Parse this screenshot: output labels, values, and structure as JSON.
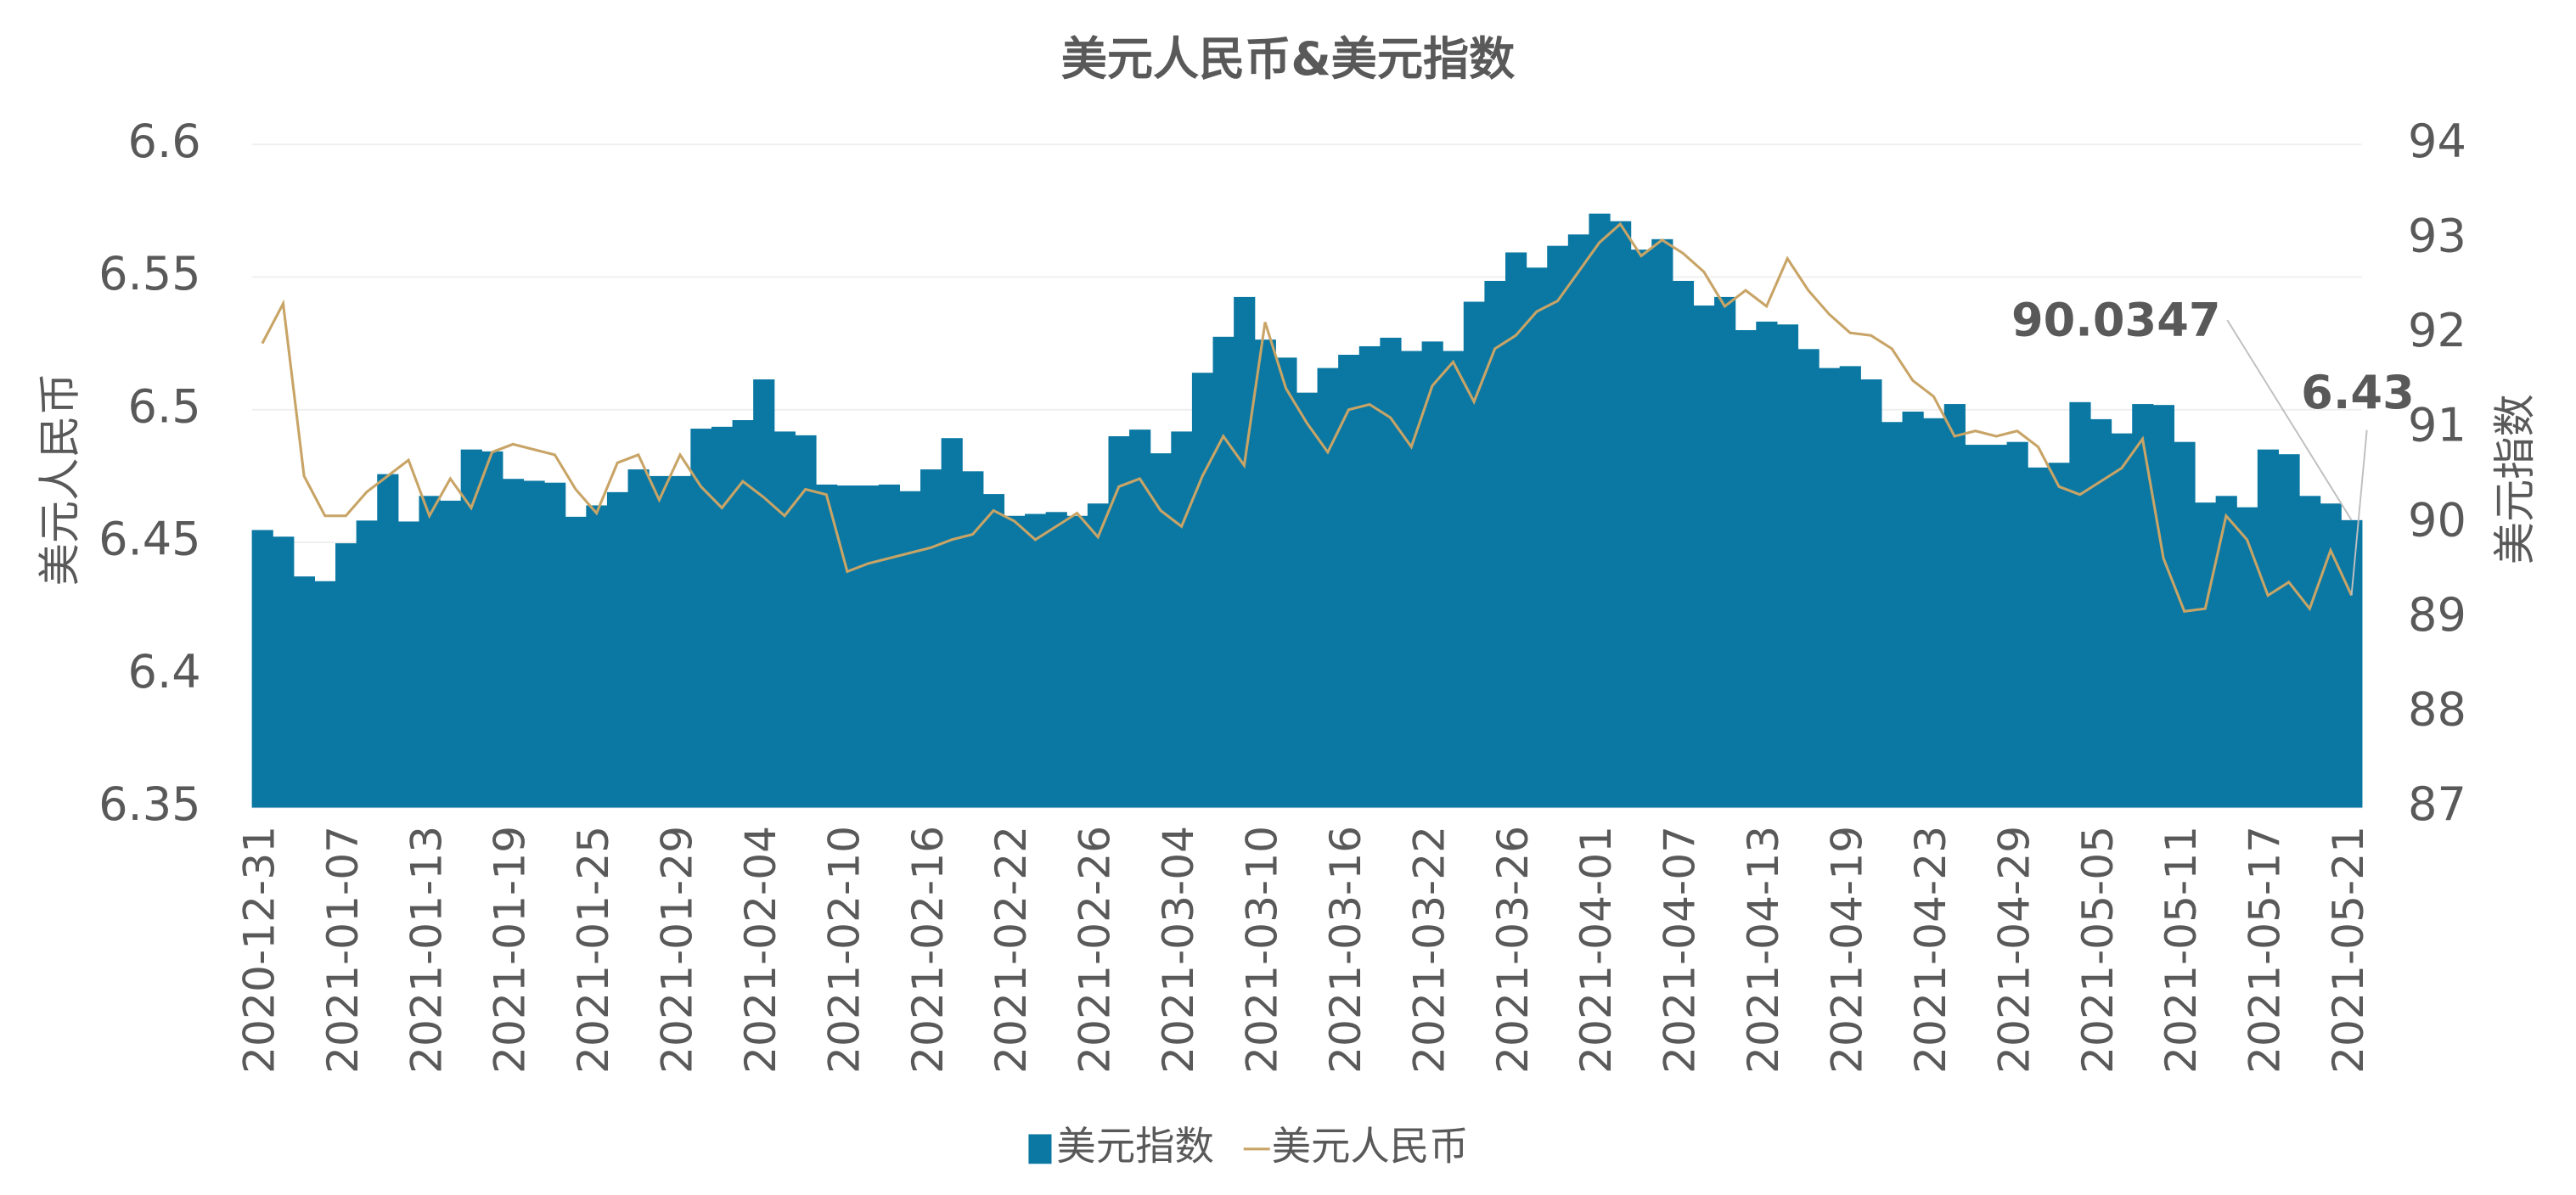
{
  "chart_data": {
    "type": "combo",
    "title": "美元人民币&美元指数",
    "y_label": "美元人民币",
    "y2_label": "美元指数",
    "categories": [
      "2020-12-31",
      null,
      null,
      null,
      "2021-01-07",
      null,
      null,
      null,
      "2021-01-13",
      null,
      null,
      null,
      "2021-01-19",
      null,
      null,
      null,
      "2021-01-25",
      null,
      null,
      null,
      "2021-01-29",
      null,
      null,
      null,
      "2021-02-04",
      null,
      null,
      null,
      "2021-02-10",
      null,
      null,
      null,
      "2021-02-16",
      null,
      null,
      null,
      "2021-02-22",
      null,
      null,
      null,
      "2021-02-26",
      null,
      null,
      null,
      "2021-03-04",
      null,
      null,
      null,
      "2021-03-10",
      null,
      null,
      null,
      "2021-03-16",
      null,
      null,
      null,
      "2021-03-22",
      null,
      null,
      null,
      "2021-03-26",
      null,
      null,
      null,
      "2021-04-01",
      null,
      null,
      null,
      "2021-04-07",
      null,
      null,
      null,
      "2021-04-13",
      null,
      null,
      null,
      "2021-04-19",
      null,
      null,
      null,
      "2021-04-23",
      null,
      null,
      null,
      "2021-04-29",
      null,
      null,
      null,
      "2021-05-05",
      null,
      null,
      null,
      "2021-05-11",
      null,
      null,
      null,
      "2021-05-17",
      null,
      null,
      null,
      "2021-05-21"
    ],
    "series": [
      {
        "name": "美元指数",
        "type": "bar",
        "axis": "y2",
        "color": "#0b78a3",
        "values": [
          89.93,
          89.86,
          89.44,
          89.39,
          89.79,
          90.03,
          90.52,
          90.02,
          90.29,
          90.24,
          90.78,
          90.76,
          90.47,
          90.45,
          90.43,
          90.07,
          90.19,
          90.33,
          90.57,
          90.5,
          90.5,
          91.0,
          91.02,
          91.09,
          91.52,
          90.97,
          90.93,
          90.41,
          90.4,
          90.4,
          90.41,
          90.34,
          90.57,
          90.9,
          90.55,
          90.31,
          90.08,
          90.1,
          90.12,
          90.08,
          90.21,
          90.92,
          90.99,
          90.74,
          90.97,
          91.59,
          91.97,
          92.39,
          91.94,
          91.75,
          91.38,
          91.64,
          91.78,
          91.87,
          91.96,
          91.82,
          91.92,
          91.82,
          92.34,
          92.56,
          92.86,
          92.7,
          92.93,
          93.05,
          93.27,
          93.19,
          92.89,
          93.0,
          92.56,
          92.3,
          92.39,
          92.04,
          92.13,
          92.1,
          91.84,
          91.64,
          91.66,
          91.52,
          91.07,
          91.18,
          91.11,
          91.26,
          90.83,
          90.83,
          90.86,
          90.59,
          90.64,
          91.28,
          91.1,
          90.95,
          91.26,
          91.25,
          90.86,
          90.22,
          90.29,
          90.17,
          90.78,
          90.73,
          90.29,
          90.21,
          90.0347
        ]
      },
      {
        "name": "美元人民币",
        "type": "line",
        "color": "#c8a466",
        "values": [
          6.525,
          6.54,
          6.475,
          6.46,
          6.46,
          6.469,
          6.475,
          6.481,
          6.46,
          6.474,
          6.463,
          6.484,
          6.487,
          6.485,
          6.483,
          6.47,
          6.461,
          6.48,
          6.483,
          6.466,
          6.483,
          6.471,
          6.463,
          6.473,
          6.467,
          6.46,
          6.47,
          6.468,
          6.439,
          6.442,
          6.444,
          6.446,
          6.448,
          6.451,
          6.453,
          6.462,
          6.458,
          6.451,
          6.456,
          6.461,
          6.452,
          6.471,
          6.474,
          6.462,
          6.456,
          6.475,
          6.49,
          6.479,
          6.533,
          6.508,
          6.495,
          6.484,
          6.5,
          6.502,
          6.497,
          6.486,
          6.509,
          6.518,
          6.503,
          6.523,
          6.528,
          6.537,
          6.541,
          6.552,
          6.563,
          6.57,
          6.558,
          6.564,
          6.559,
          6.552,
          6.539,
          6.545,
          6.539,
          6.557,
          6.545,
          6.536,
          6.529,
          6.528,
          6.523,
          6.511,
          6.505,
          6.49,
          6.492,
          6.49,
          6.492,
          6.486,
          6.471,
          6.468,
          6.473,
          6.478,
          6.489,
          6.444,
          6.424,
          6.425,
          6.46,
          6.451,
          6.43,
          6.435,
          6.425,
          6.447,
          6.43
        ]
      }
    ],
    "ylim": [
      6.35,
      6.6
    ],
    "yticks": [
      6.35,
      6.4,
      6.45,
      6.5,
      6.55,
      6.6
    ],
    "y2lim": [
      87,
      94
    ],
    "y2ticks": [
      87,
      88,
      89,
      90,
      91,
      92,
      93,
      94
    ],
    "grid": true,
    "legend": "bottom"
  }
}
